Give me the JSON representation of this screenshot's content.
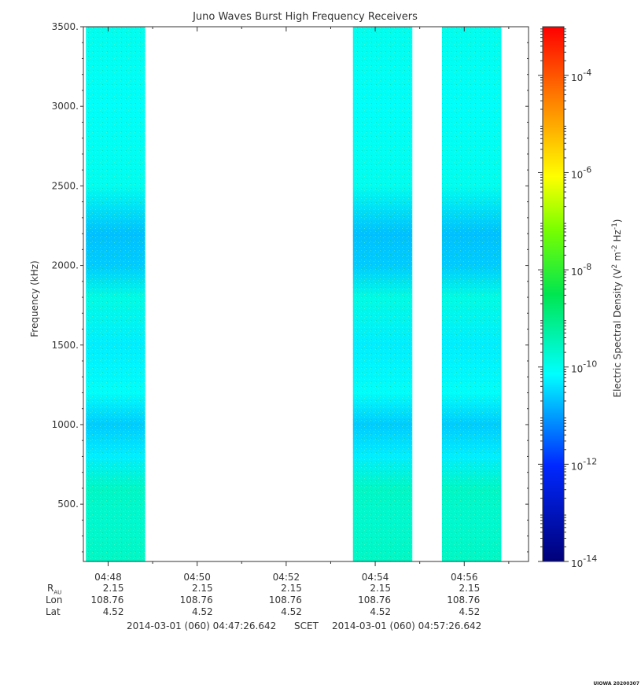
{
  "chart_data": {
    "type": "heatmap",
    "title": "Juno Waves Burst High Frequency Receivers",
    "ylabel": "Frequency (kHz)",
    "ylim": [
      140,
      3500
    ],
    "yticks": [
      500,
      1000,
      1500,
      2000,
      2500,
      3000,
      3500
    ],
    "ytick_labels": [
      "500.",
      "1000.",
      "1500.",
      "2000.",
      "2500.",
      "3000.",
      "3500."
    ],
    "x_start": "04:47:26.642",
    "x_end": "04:57:26.642",
    "xticks": [
      "04:48",
      "04:50",
      "04:52",
      "04:54",
      "04:56"
    ],
    "data_intervals": [
      {
        "start": "04:47:30",
        "end": "04:48:50"
      },
      {
        "start": "04:53:30",
        "end": "04:54:50"
      },
      {
        "start": "04:55:30",
        "end": "04:56:50"
      }
    ],
    "spectral_profile": {
      "frequencies_khz": [
        140,
        400,
        600,
        800,
        1000,
        1200,
        1500,
        1800,
        2000,
        2200,
        2500,
        3000,
        3500
      ],
      "log10_density": [
        -9.6,
        -9.7,
        -9.6,
        -10.3,
        -10.6,
        -10.1,
        -10.3,
        -9.9,
        -10.6,
        -10.7,
        -10.0,
        -10.1,
        -10.0
      ]
    },
    "colorbar": {
      "label": "Electric Spectral Density (V² m⁻² Hz⁻¹)",
      "label_base": "Electric Spectral Density (V",
      "label_exps": [
        "2",
        "-2",
        "-1"
      ],
      "label_parts": [
        " m",
        " Hz",
        ")"
      ],
      "log10_range": [
        -14,
        -3
      ],
      "tick_exponents": [
        -14,
        -12,
        -10,
        -8,
        -6,
        -4
      ],
      "tick_base": "10"
    }
  },
  "ephemeris": {
    "row_labels": [
      "R",
      "Lon",
      "Lat"
    ],
    "r_subscript": "AU",
    "columns": [
      {
        "r": "2.15",
        "lon": "108.76",
        "lat": "4.52"
      },
      {
        "r": "2.15",
        "lon": "108.76",
        "lat": "4.52"
      },
      {
        "r": "2.15",
        "lon": "108.76",
        "lat": "4.52"
      },
      {
        "r": "2.15",
        "lon": "108.76",
        "lat": "4.52"
      },
      {
        "r": "2.15",
        "lon": "108.76",
        "lat": "4.52"
      }
    ]
  },
  "time_range": {
    "start": "2014-03-01 (060) 04:47:26.642",
    "label": "SCET",
    "end": "2014-03-01 (060) 04:57:26.642"
  },
  "footer": {
    "stamp": "UIOWA 20200307"
  }
}
